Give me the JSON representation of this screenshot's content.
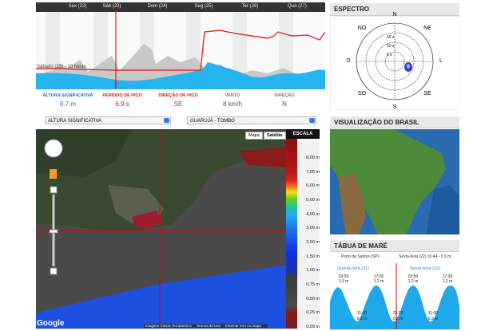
{
  "forecast": {
    "days": [
      "Sex (22)",
      "Sáb (23)",
      "Dom (24)",
      "Seg (25)",
      "Ter (26)",
      "Qua (27)"
    ],
    "annotation": "Sábado (23) - 10 horas",
    "stats": [
      {
        "label": "ALTURA SIGNIFICATIVA",
        "value": "0.7 m"
      },
      {
        "label": "PERÍODO DE PICO",
        "value": "6.9 s"
      },
      {
        "label": "DIREÇÃO DE PICO",
        "value": "SE"
      },
      {
        "label": "VENTO",
        "value": "8 km/h"
      },
      {
        "label": "DIREÇÃO",
        "value": "N"
      }
    ]
  },
  "spectrum": {
    "title": "ESPECTRO",
    "directions": [
      "N",
      "NE",
      "L",
      "SE",
      "S",
      "SO",
      "O",
      "NO"
    ],
    "rings": [
      "15 s",
      "10 s",
      "5 s"
    ]
  },
  "selectors": [
    "ALTURA SIGNIFICATIVA",
    "GUARUJÁ - TOMBO"
  ],
  "map": {
    "buttons": [
      "Mapa",
      "Satélite"
    ],
    "scale_title": "ESCALA",
    "scale": [
      "8,00 m",
      "7,00 m",
      "6,00 m",
      "5,00 m",
      "4,00 m",
      "3,00 m",
      "2,00 m",
      "1,50 m",
      "1,00 m",
      "0,75 m",
      "0,50 m",
      "0,25 m",
      "0,00 m"
    ],
    "logo": "Google",
    "credits": [
      "Imagens ©2015 TerraMetrics",
      "Termos de Uso",
      "Informar erro no mapa"
    ]
  },
  "brazil": {
    "title": "VISUALIZAÇÃO DO BRASIL"
  },
  "tide": {
    "title": "TÁBUA DE MARÉ",
    "port": "Porto de Santos (SP)",
    "current": "Sexta-feira (22) 01:44 - 0.9 m",
    "days": [
      "Quinta-feira (21)",
      "Sexta-feira (22)"
    ],
    "highs": [
      {
        "time": "03:50",
        "height": "1.3 m"
      },
      {
        "time": "17:00",
        "height": "1.2 m"
      },
      {
        "time": "03:50",
        "height": "1.2 m"
      },
      {
        "time": "17:36",
        "height": "1.2 m"
      }
    ],
    "lows": [
      {
        "time": "11:00",
        "height": "0.3 m"
      },
      {
        "time": "23:23",
        "height": "0.2 m"
      },
      {
        "time": "11:00",
        "height": "0.3 m"
      }
    ]
  }
}
